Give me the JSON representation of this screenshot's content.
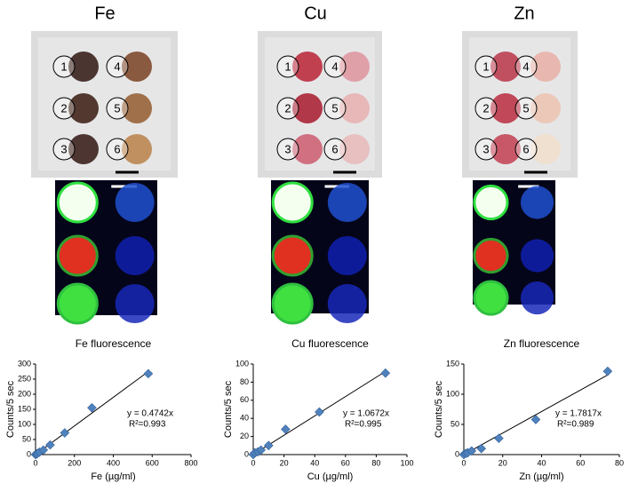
{
  "panels": [
    {
      "title": "Fe",
      "sample_labels": [
        "1",
        "2",
        "3",
        "4",
        "5",
        "6"
      ]
    },
    {
      "title": "Cu",
      "sample_labels": [
        "1",
        "2",
        "3",
        "4",
        "5",
        "6"
      ]
    },
    {
      "title": "Zn",
      "sample_labels": [
        "1",
        "2",
        "3",
        "4",
        "5",
        "6"
      ]
    }
  ],
  "chart_data": [
    {
      "type": "scatter",
      "title": "Fe fluorescence",
      "x_label": "Fe (µg/ml)",
      "y_label": "Counts/5 sec",
      "color": "#4f81bd",
      "x": [
        0,
        5,
        10,
        20,
        40,
        75,
        150,
        290,
        580
      ],
      "values": [
        0,
        2,
        4,
        8,
        15,
        32,
        72,
        155,
        268
      ],
      "xlim": [
        0,
        800
      ],
      "xticks": [
        0,
        200,
        400,
        600,
        800
      ],
      "ylim": [
        0,
        300
      ],
      "yticks": [
        0,
        50,
        100,
        150,
        200,
        250,
        300
      ],
      "trendline": {
        "slope": 0.4742,
        "label": "y = 0.4742x"
      },
      "r2_label": "R²=0.993"
    },
    {
      "type": "scatter",
      "title": "Cu fluorescence",
      "x_label": "Cu (µg/ml)",
      "y_label": "Counts/5 sec",
      "color": "#4f81bd",
      "x": [
        0,
        1,
        3,
        5,
        10,
        21,
        43,
        86
      ],
      "values": [
        0,
        2,
        3,
        5,
        10,
        28,
        47,
        90
      ],
      "xlim": [
        0,
        100
      ],
      "xticks": [
        0,
        20,
        40,
        60,
        80,
        100
      ],
      "ylim": [
        0,
        100
      ],
      "yticks": [
        0,
        20,
        40,
        60,
        80,
        100
      ],
      "trendline": {
        "slope": 1.0672,
        "label": "y = 1.0672x"
      },
      "r2_label": "R²=0.995"
    },
    {
      "type": "scatter",
      "title": "Zn fluorescence",
      "x_label": "Zn (µg/ml)",
      "y_label": "Counts/5 sec",
      "color": "#4f81bd",
      "x": [
        0,
        1,
        2,
        4,
        9,
        18,
        37,
        74
      ],
      "values": [
        0,
        2,
        3,
        6,
        10,
        27,
        58,
        138
      ],
      "xlim": [
        0,
        80
      ],
      "xticks": [
        0,
        20,
        40,
        60,
        80
      ],
      "ylim": [
        0,
        150
      ],
      "yticks": [
        0,
        50,
        100,
        150
      ],
      "trendline": {
        "slope": 1.7817,
        "label": "y = 1.7817x"
      },
      "r2_label": "R²=0.989"
    }
  ]
}
